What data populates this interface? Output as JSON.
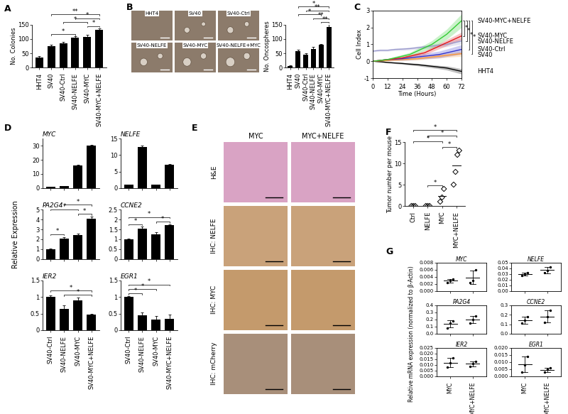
{
  "chart_data": [
    {
      "panel": "A",
      "type": "bar",
      "categories": [
        "HHT4",
        "SV40",
        "SV40-Ctrl",
        "SV40-NELFE",
        "SV40-MYC",
        "SV40-MYC+NELFE"
      ],
      "values": [
        35,
        75,
        85,
        105,
        107,
        133
      ],
      "errors": [
        5,
        6,
        5,
        4,
        7,
        5
      ],
      "color": "#000000",
      "y_label": "No. Colonies",
      "ylim": [
        0,
        150
      ],
      "yticks": [
        0,
        50,
        100,
        150
      ],
      "significance": [
        {
          "from": 1,
          "to": 3,
          "label": "*"
        },
        {
          "from": 2,
          "to": 4,
          "label": "*"
        },
        {
          "from": 4,
          "to": 5,
          "label": "*"
        },
        {
          "from": 3,
          "to": 5,
          "label": "*"
        },
        {
          "from": 1,
          "to": 5,
          "label": "**"
        }
      ]
    },
    {
      "panel": "B",
      "type": "bar",
      "categories": [
        "HHT4",
        "SV40",
        "SV40-Ctrl",
        "SV40-NELFE",
        "SV40-MYC",
        "SV40-MYC+NELFE"
      ],
      "values": [
        5,
        58,
        45,
        65,
        80,
        142
      ],
      "errors": [
        2,
        5,
        6,
        8,
        3,
        10
      ],
      "color": "#000000",
      "y_label": "No. Oncospheres",
      "ylim": [
        0,
        150
      ],
      "yticks": [
        0,
        50,
        100,
        150
      ],
      "significance": [
        {
          "from": 1,
          "to": 4,
          "label": "*"
        },
        {
          "from": 4,
          "to": 5,
          "label": "**"
        },
        {
          "from": 3,
          "to": 5,
          "label": "**"
        },
        {
          "from": 2,
          "to": 5,
          "label": "**"
        },
        {
          "from": 1,
          "to": 5,
          "label": "*"
        }
      ]
    },
    {
      "panel": "C",
      "type": "line",
      "x": [
        0,
        6,
        12,
        18,
        24,
        30,
        36,
        42,
        48,
        54,
        60,
        66,
        72
      ],
      "x_label": "Time (Hours)",
      "y_label": "Cell Index",
      "xlim": [
        0,
        72
      ],
      "xticks": [
        0,
        12,
        24,
        36,
        48,
        60,
        72
      ],
      "ylim": [
        -1,
        3
      ],
      "yticks": [
        -1,
        0,
        1,
        2,
        3
      ],
      "series": [
        {
          "name": "HHT4",
          "color": "#000000",
          "values": [
            0,
            -0.03,
            -0.07,
            -0.1,
            -0.13,
            -0.17,
            -0.2,
            -0.25,
            -0.3,
            -0.35,
            -0.4,
            -0.5,
            -0.6
          ],
          "errors": [
            0,
            0.02,
            0.03,
            0.04,
            0.05,
            0.06,
            0.07,
            0.08,
            0.09,
            0.1,
            0.12,
            0.14,
            0.16
          ]
        },
        {
          "name": "SV40",
          "color": "#ff9933",
          "values": [
            0,
            0.02,
            0.05,
            0.08,
            0.1,
            0.12,
            0.15,
            0.2,
            0.25,
            0.3,
            0.35,
            0.4,
            0.45
          ],
          "errors": [
            0,
            0.03,
            0.04,
            0.05,
            0.06,
            0.07,
            0.08,
            0.09,
            0.1,
            0.11,
            0.12,
            0.14,
            0.16
          ]
        },
        {
          "name": "SV40-Ctrl",
          "color": "#3333cc",
          "values": [
            0,
            0.05,
            0.1,
            0.12,
            0.15,
            0.2,
            0.25,
            0.3,
            0.35,
            0.4,
            0.5,
            0.6,
            0.7
          ],
          "errors": [
            0,
            0.05,
            0.06,
            0.08,
            0.1,
            0.12,
            0.14,
            0.16,
            0.18,
            0.2,
            0.22,
            0.25,
            0.28
          ]
        },
        {
          "name": "SV40-NELFE",
          "color": "#9999cc",
          "values": [
            0.6,
            0.65,
            0.65,
            0.7,
            0.72,
            0.75,
            0.8,
            0.85,
            0.9,
            0.95,
            1.0,
            1.1,
            1.2
          ],
          "errors": [
            0.05,
            0.06,
            0.06,
            0.07,
            0.08,
            0.08,
            0.09,
            0.1,
            0.1,
            0.12,
            0.14,
            0.16,
            0.18
          ]
        },
        {
          "name": "SV40-MYC",
          "color": "#e31a1c",
          "values": [
            0,
            0.05,
            0.1,
            0.15,
            0.2,
            0.3,
            0.4,
            0.5,
            0.7,
            0.9,
            1.1,
            1.3,
            1.5
          ],
          "errors": [
            0,
            0.03,
            0.04,
            0.05,
            0.06,
            0.08,
            0.1,
            0.12,
            0.14,
            0.16,
            0.18,
            0.2,
            0.22
          ]
        },
        {
          "name": "SV40-MYC+NELFE",
          "color": "#33cc33",
          "values": [
            0,
            0.05,
            0.1,
            0.2,
            0.3,
            0.4,
            0.6,
            0.8,
            1.0,
            1.3,
            1.6,
            2.0,
            2.4
          ],
          "errors": [
            0,
            0.05,
            0.06,
            0.08,
            0.1,
            0.12,
            0.15,
            0.18,
            0.22,
            0.26,
            0.3,
            0.35,
            0.4
          ]
        }
      ],
      "significance": [
        {
          "from": 5,
          "to": 4,
          "label": "*"
        },
        {
          "from": 5,
          "to": 3,
          "label": "*"
        },
        {
          "from": 5,
          "to": 2,
          "label": "*"
        },
        {
          "from": 5,
          "to": 1,
          "label": "*"
        }
      ]
    },
    {
      "panel": "D",
      "type": "bar_grid",
      "y_label": "Relative Expression",
      "color": "#000000",
      "categories": [
        "SV40-Ctrl",
        "SV40-NELFE",
        "SV40-MYC",
        "SV40-MYC+NELFE"
      ],
      "charts": [
        {
          "title": "MYC",
          "values": [
            1,
            1.5,
            16,
            30
          ],
          "errors": [
            0.1,
            0.2,
            0.3,
            0.4
          ],
          "ylim": [
            0,
            35
          ],
          "yticks": [
            0,
            10,
            20,
            30
          ]
        },
        {
          "title": "NELFE",
          "values": [
            1,
            12.5,
            1,
            7
          ],
          "errors": [
            0.1,
            0.3,
            0.1,
            0.2
          ],
          "ylim": [
            0,
            15
          ],
          "yticks": [
            0,
            5,
            10,
            15
          ]
        },
        {
          "title": "PA2G4",
          "values": [
            1,
            2.1,
            2.4,
            4.1
          ],
          "errors": [
            0.1,
            0.15,
            0.15,
            0.2
          ],
          "ylim": [
            0,
            5
          ],
          "yticks": [
            0,
            1,
            2,
            3,
            4,
            5
          ],
          "significance": [
            {
              "from": 0,
              "to": 1,
              "label": "*"
            },
            {
              "from": 2,
              "to": 3,
              "label": "*"
            },
            {
              "from": 0,
              "to": 2,
              "label": "*"
            },
            {
              "from": 1,
              "to": 3,
              "label": "*"
            }
          ]
        },
        {
          "title": "CCNE2",
          "values": [
            1,
            1.55,
            1.25,
            1.7
          ],
          "errors": [
            0.05,
            0.08,
            0.1,
            0.06
          ],
          "ylim": [
            0,
            2.5
          ],
          "yticks": [
            0,
            0.5,
            1,
            1.5,
            2,
            2.5
          ],
          "significance": [
            {
              "from": 0,
              "to": 1,
              "label": "*"
            },
            {
              "from": 2,
              "to": 3,
              "label": "*"
            },
            {
              "from": 0,
              "to": 3,
              "label": "*"
            }
          ]
        },
        {
          "title": "IER2",
          "values": [
            1,
            0.65,
            0.9,
            0.48
          ],
          "errors": [
            0.05,
            0.1,
            0.08,
            0.02
          ],
          "ylim": [
            0,
            1.5
          ],
          "yticks": [
            0,
            0.5,
            1,
            1.5
          ],
          "significance": [
            {
              "from": 1,
              "to": 3,
              "label": "*"
            },
            {
              "from": 0,
              "to": 3,
              "label": "*"
            }
          ]
        },
        {
          "title": "EGR1",
          "values": [
            1,
            0.45,
            0.32,
            0.35
          ],
          "errors": [
            0.03,
            0.08,
            0.1,
            0.12
          ],
          "ylim": [
            0,
            1.5
          ],
          "yticks": [
            0,
            0.5,
            1,
            1.5
          ],
          "significance": [
            {
              "from": 0,
              "to": 1,
              "label": "*"
            },
            {
              "from": 0,
              "to": 2,
              "label": "*"
            },
            {
              "from": 0,
              "to": 3,
              "label": "*"
            }
          ]
        }
      ]
    },
    {
      "panel": "F",
      "type": "dot",
      "marker": "diamond",
      "color": "#000000",
      "categories": [
        "Ctrl",
        "NELFE",
        "MYC",
        "MYC+NELFE"
      ],
      "points": [
        [
          0,
          0,
          0
        ],
        [
          0,
          0,
          0
        ],
        [
          1,
          2,
          4
        ],
        [
          5,
          8,
          12,
          13
        ]
      ],
      "y_label": "Tumor number per mouse",
      "ylim": [
        0,
        15
      ],
      "yticks": [
        0,
        5,
        10,
        15
      ],
      "significance": [
        {
          "from": 1,
          "to": 2,
          "label": "*"
        },
        {
          "from": 2,
          "to": 3,
          "label": "*"
        },
        {
          "from": 0,
          "to": 2,
          "label": "*"
        },
        {
          "from": 1,
          "to": 3,
          "label": "*"
        },
        {
          "from": 0,
          "to": 3,
          "label": "*"
        }
      ]
    },
    {
      "panel": "G",
      "type": "dot_grid",
      "marker": "circle",
      "color": "#000000",
      "y_label": "Relative mRNA expression (normalized to β-Actin)",
      "categories": [
        "MYC",
        "MYC+NELFE"
      ],
      "charts": [
        {
          "title": "MYC",
          "points": [
            [
              0.0025,
              0.003,
              0.0035
            ],
            [
              0.0025,
              0.003,
              0.006
            ]
          ],
          "ylim": [
            0,
            0.008
          ],
          "yticks": [
            {
              "value": 0,
              "label": "0.000"
            },
            {
              "value": 0.002,
              "label": "0.002"
            },
            {
              "value": 0.004,
              "label": "0.004"
            },
            {
              "value": 0.006,
              "label": "0.006"
            },
            {
              "value": 0.008,
              "label": "0.008"
            }
          ]
        },
        {
          "title": "NELFE",
          "points": [
            [
              0.027,
              0.03,
              0.033
            ],
            [
              0.032,
              0.036,
              0.043
            ]
          ],
          "ylim": [
            0,
            0.05
          ],
          "yticks": [
            {
              "value": 0,
              "label": "0.00"
            },
            {
              "value": 0.01,
              "label": "0.01"
            },
            {
              "value": 0.02,
              "label": "0.02"
            },
            {
              "value": 0.03,
              "label": "0.03"
            },
            {
              "value": 0.04,
              "label": "0.04"
            },
            {
              "value": 0.05,
              "label": "0.05"
            }
          ]
        },
        {
          "title": "PA2G4",
          "points": [
            [
              0.08,
              0.15,
              0.18
            ],
            [
              0.15,
              0.2,
              0.25
            ]
          ],
          "ylim": [
            0,
            0.4
          ],
          "yticks": [
            {
              "value": 0,
              "label": "0.0"
            },
            {
              "value": 0.1,
              "label": "0.1"
            },
            {
              "value": 0.2,
              "label": "0.2"
            },
            {
              "value": 0.3,
              "label": "0.3"
            },
            {
              "value": 0.4,
              "label": "0.4"
            }
          ]
        },
        {
          "title": "CCNE2",
          "points": [
            [
              0.11,
              0.14,
              0.18
            ],
            [
              0.12,
              0.18,
              0.25
            ]
          ],
          "ylim": [
            0,
            0.3
          ],
          "yticks": [
            {
              "value": 0,
              "label": "0.0"
            },
            {
              "value": 0.1,
              "label": "0.1"
            },
            {
              "value": 0.2,
              "label": "0.2"
            },
            {
              "value": 0.3,
              "label": "0.3"
            }
          ]
        },
        {
          "title": "IER2",
          "points": [
            [
              0.008,
              0.012,
              0.016
            ],
            [
              0.009,
              0.011,
              0.013
            ]
          ],
          "ylim": [
            0,
            0.025
          ],
          "yticks": [
            {
              "value": 0,
              "label": "0.000"
            },
            {
              "value": 0.005,
              "label": "0.005"
            },
            {
              "value": 0.01,
              "label": "0.010"
            },
            {
              "value": 0.015,
              "label": "0.015"
            },
            {
              "value": 0.02,
              "label": "0.020"
            },
            {
              "value": 0.025,
              "label": "0.025"
            }
          ]
        },
        {
          "title": "EGR1",
          "points": [
            [
              0.003,
              0.008,
              0.014
            ],
            [
              0.003,
              0.005,
              0.006
            ]
          ],
          "ylim": [
            0,
            0.02
          ],
          "yticks": [
            {
              "value": 0,
              "label": "0.000"
            },
            {
              "value": 0.005,
              "label": "0.005"
            },
            {
              "value": 0.01,
              "label": "0.010"
            },
            {
              "value": 0.015,
              "label": "0.015"
            },
            {
              "value": 0.02,
              "label": "0.020"
            }
          ]
        }
      ]
    }
  ],
  "oncosphere_images": [
    "HHT4",
    "SV40",
    "SV40-Ctrl",
    "SV40-NELFE",
    "SV40-MYC",
    "SV40-NELFE+MYC"
  ],
  "tissue_images": {
    "panel": "E",
    "columns": [
      "MYC",
      "MYC+NELFE"
    ],
    "rows": [
      "H&E",
      "IHC: NELFE",
      "IHC: MYC",
      "IHC: mCherry"
    ]
  }
}
